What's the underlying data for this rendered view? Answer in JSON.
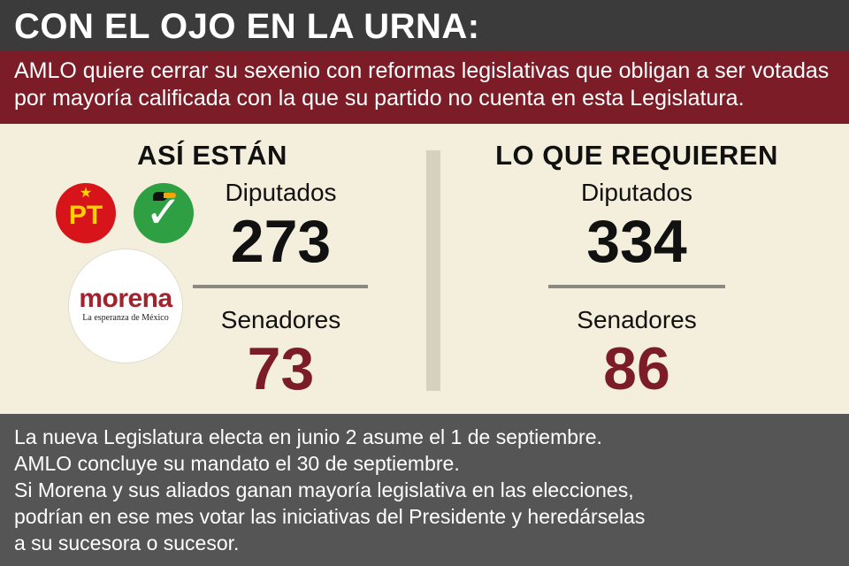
{
  "header": {
    "title": "CON EL OJO EN LA URNA:"
  },
  "intro": {
    "text": "AMLO quiere cerrar su sexenio con reformas legislativas que obligan a ser votadas por mayoría calificada con la que su partido no cuenta en esta Legislatura."
  },
  "left": {
    "title": "ASÍ ESTÁN",
    "diputados_label": "Diputados",
    "diputados_value": "273",
    "senadores_label": "Senadores",
    "senadores_value": "73"
  },
  "right": {
    "title": "LO QUE REQUIEREN",
    "diputados_label": "Diputados",
    "diputados_value": "334",
    "senadores_label": "Senadores",
    "senadores_value": "86"
  },
  "logos": {
    "pt": {
      "text": "PT",
      "icon": "pt-logo-icon"
    },
    "pvem": {
      "icon": "pvem-logo-icon"
    },
    "morena": {
      "name": "morena",
      "tagline": "La esperanza de México",
      "icon": "morena-logo-icon"
    }
  },
  "footer": {
    "lines": [
      "La nueva Legislatura electa en junio 2 asume el 1 de septiembre.",
      "AMLO concluye su mandato el 30 de septiembre.",
      "Si Morena y sus aliados ganan mayoría legislativa en las elecciones,",
      "podrían en ese mes votar las iniciativas del Presidente y heredárselas",
      "a su sucesora o sucesor."
    ]
  },
  "colors": {
    "header_bg": "#3b3b3b",
    "intro_bg": "#7b1c26",
    "main_bg": "#f4efdc",
    "footer_bg": "#555555",
    "accent_red": "#7b1c26"
  }
}
